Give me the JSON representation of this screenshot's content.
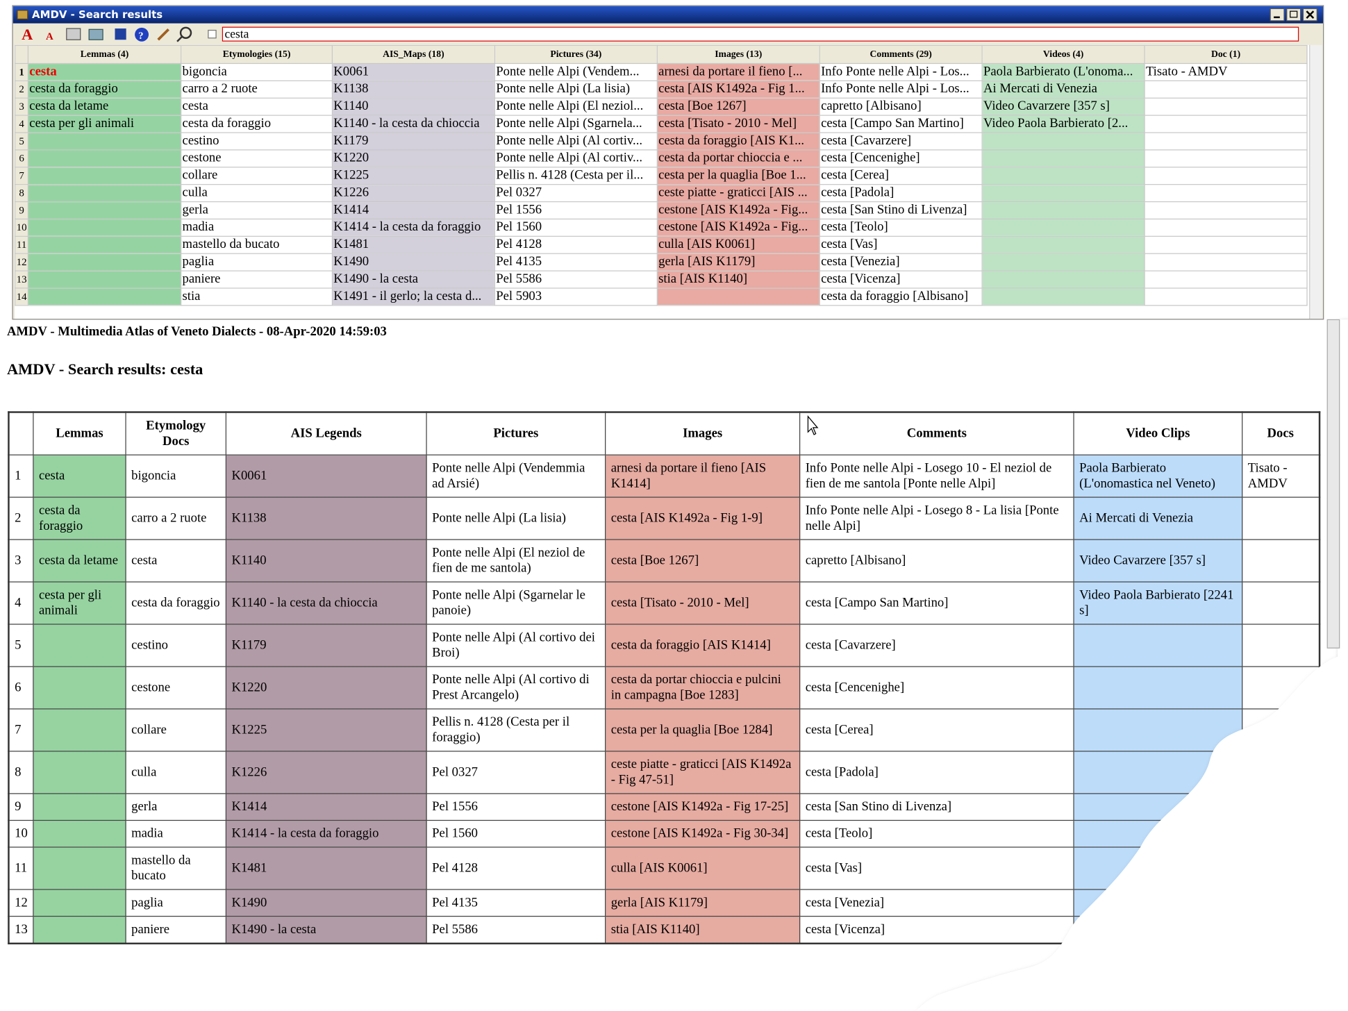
{
  "window": {
    "title": "AMDV - Search results",
    "search": "cesta"
  },
  "grid": {
    "headers": [
      "Lemmas (4)",
      "Etymologies (15)",
      "AIS_Maps (18)",
      "Pictures (34)",
      "Images (13)",
      "Comments (29)",
      "Videos (4)",
      "Doc (1)"
    ],
    "rows": [
      [
        1,
        "cesta",
        "bigoncia",
        "K0061",
        "Ponte nelle Alpi (Vendem...",
        "arnesi da portare il fieno [...",
        "Info Ponte nelle Alpi - Los...",
        "Paola Barbierato (L'onoma...",
        "Tisato - AMDV"
      ],
      [
        2,
        "cesta da foraggio",
        "carro a 2 ruote",
        "K1138",
        "Ponte nelle Alpi (La lisia)",
        "cesta [AIS K1492a - Fig 1...",
        "Info Ponte nelle Alpi - Los...",
        "Ai Mercati di Venezia",
        null
      ],
      [
        3,
        "cesta da letame",
        "cesta",
        "K1140",
        "Ponte nelle Alpi (El neziol...",
        "cesta [Boe 1267]",
        "capretto [Albisano]",
        "Video Cavarzere [357 s]",
        null
      ],
      [
        4,
        "cesta per gli animali",
        "cesta da foraggio",
        "K1140 - la cesta da chioccia",
        "Ponte nelle Alpi (Sgarnela...",
        "cesta [Tisato - 2010 - Mel]",
        "cesta [Campo San Martino]",
        "Video Paola Barbierato [2...",
        null
      ],
      [
        5,
        null,
        "cestino",
        "K1179",
        "Ponte nelle Alpi (Al cortiv...",
        "cesta da foraggio [AIS K1...",
        "cesta [Cavarzere]",
        null,
        null
      ],
      [
        6,
        null,
        "cestone",
        "K1220",
        "Ponte nelle Alpi (Al cortiv...",
        "cesta da portar chioccia e ...",
        "cesta [Cencenighe]",
        null,
        null
      ],
      [
        7,
        null,
        "collare",
        "K1225",
        "Pellis n. 4128 (Cesta per il...",
        "cesta per la quaglia [Boe 1...",
        "cesta [Cerea]",
        null,
        null
      ],
      [
        8,
        null,
        "culla",
        "K1226",
        "Pel 0327",
        "ceste piatte - graticci [AIS ...",
        "cesta [Padola]",
        null,
        null
      ],
      [
        9,
        null,
        "gerla",
        "K1414",
        "Pel 1556",
        "cestone [AIS K1492a - Fig...",
        "cesta [San Stino di Livenza]",
        null,
        null
      ],
      [
        10,
        null,
        "madia",
        "K1414 - la cesta da foraggio",
        "Pel 1560",
        "cestone [AIS K1492a - Fig...",
        "cesta [Teolo]",
        null,
        null
      ],
      [
        11,
        null,
        "mastello da bucato",
        "K1481",
        "Pel 4128",
        "culla [AIS K0061]",
        "cesta [Vas]",
        null,
        null
      ],
      [
        12,
        null,
        "paglia",
        "K1490",
        "Pel 4135",
        "gerla [AIS K1179]",
        "cesta [Venezia]",
        null,
        null
      ],
      [
        13,
        null,
        "paniere",
        "K1490 - la cesta",
        "Pel 5586",
        "stia [AIS K1140]",
        "cesta [Vicenza]",
        null,
        null
      ],
      [
        14,
        null,
        "stia",
        "K1491 - il gerlo; la cesta d...",
        "Pel 5903",
        null,
        "cesta da foraggio [Albisano]",
        null,
        null
      ]
    ]
  },
  "report": {
    "meta": "AMDV - Multimedia Atlas of Veneto Dialects - 08-Apr-2020 14:59:03",
    "title": "AMDV - Search results: cesta",
    "headers": [
      "Lemmas",
      "Etymology Docs",
      "AIS Legends",
      "Pictures",
      "Images",
      "Comments",
      "Video Clips",
      "Docs"
    ],
    "rows": [
      [
        1,
        "cesta",
        "bigoncia",
        "K0061",
        "Ponte nelle Alpi (Vendemmia ad Arsié)",
        "arnesi da portare il fieno [AIS K1414]",
        "Info Ponte nelle Alpi - Losego 10 - El neziol de fien de me santola [Ponte nelle Alpi]",
        "Paola Barbierato (L'onomastica nel Veneto)",
        "Tisato - AMDV"
      ],
      [
        2,
        "cesta da foraggio",
        "carro a 2 ruote",
        "K1138",
        "Ponte nelle Alpi (La lisia)",
        "cesta [AIS K1492a - Fig 1-9]",
        "Info Ponte nelle Alpi - Losego 8 - La lisia [Ponte nelle Alpi]",
        "Ai Mercati di Venezia",
        null
      ],
      [
        3,
        "cesta da letame",
        "cesta",
        "K1140",
        "Ponte nelle Alpi (El neziol de fien de me santola)",
        "cesta [Boe 1267]",
        "capretto [Albisano]",
        "Video Cavarzere [357 s]",
        null
      ],
      [
        4,
        "cesta per gli animali",
        "cesta da foraggio",
        "K1140 - la cesta da chioccia",
        "Ponte nelle Alpi (Sgarnelar le panoie)",
        "cesta [Tisato - 2010 - Mel]",
        "cesta [Campo San Martino]",
        "Video Paola Barbierato [2241 s]",
        null
      ],
      [
        5,
        null,
        "cestino",
        "K1179",
        "Ponte nelle Alpi (Al cortivo dei Broi)",
        "cesta da foraggio [AIS K1414]",
        "cesta [Cavarzere]",
        null,
        null
      ],
      [
        6,
        null,
        "cestone",
        "K1220",
        "Ponte nelle Alpi (Al cortivo di Prest Arcangelo)",
        "cesta da portar chioccia e pulcini in campagna [Boe 1283]",
        "cesta [Cencenighe]",
        null,
        null
      ],
      [
        7,
        null,
        "collare",
        "K1225",
        "Pellis n. 4128 (Cesta per il foraggio)",
        "cesta per la quaglia [Boe 1284]",
        "cesta [Cerea]",
        null,
        null
      ],
      [
        8,
        null,
        "culla",
        "K1226",
        "Pel 0327",
        "ceste piatte - graticci [AIS K1492a - Fig 47-51]",
        "cesta [Padola]",
        null,
        null
      ],
      [
        9,
        null,
        "gerla",
        "K1414",
        "Pel 1556",
        "cestone [AIS K1492a - Fig 17-25]",
        "cesta [San Stino di Livenza]",
        null,
        null
      ],
      [
        10,
        null,
        "madia",
        "K1414 - la cesta da foraggio",
        "Pel 1560",
        "cestone [AIS K1492a - Fig 30-34]",
        "cesta [Teolo]",
        null,
        null
      ],
      [
        11,
        null,
        "mastello da bucato",
        "K1481",
        "Pel 4128",
        "culla [AIS K0061]",
        "cesta [Vas]",
        null,
        null
      ],
      [
        12,
        null,
        "paglia",
        "K1490",
        "Pel 4135",
        "gerla [AIS K1179]",
        "cesta [Venezia]",
        null,
        null
      ],
      [
        13,
        null,
        "paniere",
        "K1490 - la cesta",
        "Pel 5586",
        "stia [AIS K1140]",
        "cesta [Vicenza]",
        null,
        null
      ]
    ]
  }
}
